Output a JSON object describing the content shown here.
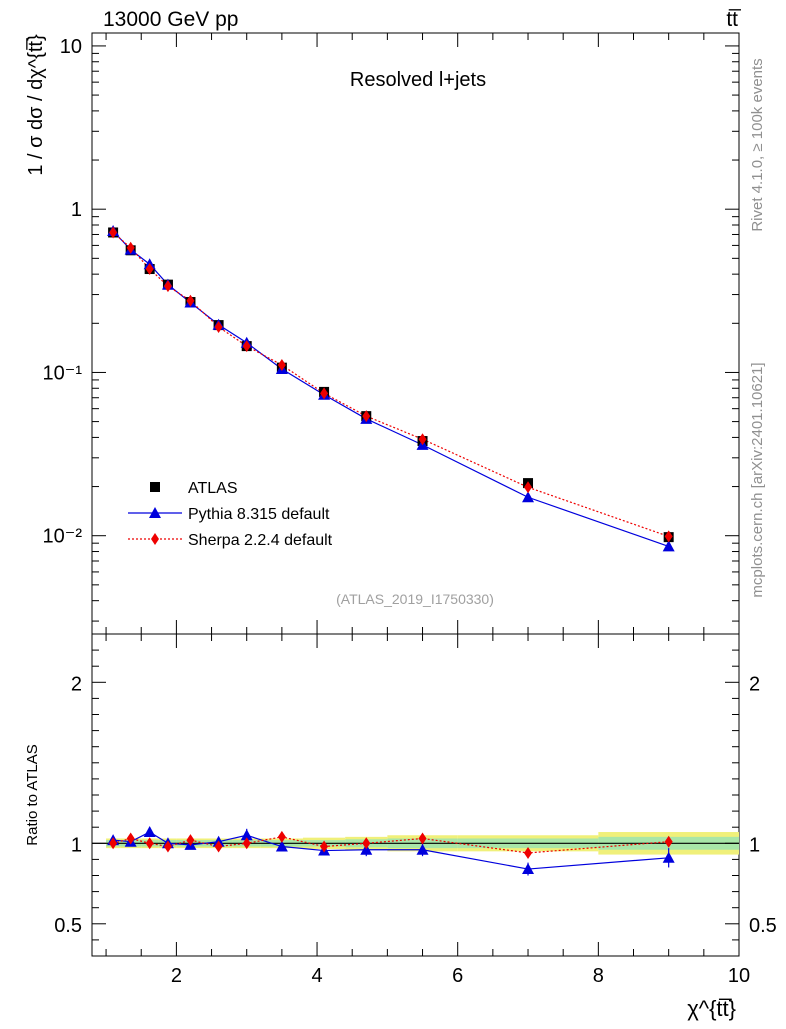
{
  "header": {
    "energy_label": "13000 GeV pp",
    "process_label": "tt̅"
  },
  "side_labels": {
    "rivet": "Rivet 4.1.0, ≥ 100k events",
    "source": "mcplots.cern.ch [arXiv:2401.10621]"
  },
  "chart_data": [
    {
      "type": "scatter",
      "panel": "main",
      "title": "Resolved l+jets",
      "watermark": "(ATLAS_2019_I1750330)",
      "ylabel": "1 / σ dσ / dχ^{tt̅}",
      "yscale": "log",
      "ylim": [
        0.0025,
        12
      ],
      "xlim": [
        0.8,
        10
      ],
      "ytick_labels": [
        "10",
        "1",
        "10⁻¹",
        "10⁻²"
      ],
      "ytick_values": [
        10,
        1,
        0.1,
        0.01
      ],
      "legend_position": "center-left",
      "x": [
        1.1,
        1.35,
        1.62,
        1.88,
        2.2,
        2.6,
        3.0,
        3.5,
        4.1,
        4.7,
        5.5,
        7.0,
        9.0
      ],
      "series": [
        {
          "name": "ATLAS",
          "style": "black squares",
          "color": "#000000",
          "values": [
            0.72,
            0.56,
            0.43,
            0.345,
            0.27,
            0.195,
            0.145,
            0.107,
            0.076,
            0.054,
            0.038,
            0.021,
            0.0098
          ]
        },
        {
          "name": "Pythia 8.315 default",
          "style": "blue triangles, solid line",
          "color": "#0000dd",
          "values": [
            0.735,
            0.565,
            0.46,
            0.345,
            0.268,
            0.196,
            0.152,
            0.105,
            0.073,
            0.052,
            0.036,
            0.0172,
            0.0086
          ]
        },
        {
          "name": "Sherpa 2.2.4 default",
          "style": "red diamonds, dotted line",
          "color": "#ee0000",
          "values": [
            0.72,
            0.58,
            0.43,
            0.338,
            0.275,
            0.19,
            0.145,
            0.111,
            0.0745,
            0.054,
            0.039,
            0.0198,
            0.0099
          ]
        }
      ]
    },
    {
      "type": "scatter",
      "panel": "ratio",
      "ylabel": "Ratio to ATLAS",
      "xlabel": "χ^{tt̅}",
      "ylim": [
        0.3,
        2.3
      ],
      "xlim": [
        0.8,
        10
      ],
      "ytick_values": [
        0.5,
        1,
        2
      ],
      "ytick_labels": [
        "0.5",
        "1",
        "2"
      ],
      "xtick_values": [
        2,
        4,
        6,
        8,
        10
      ],
      "xtick_labels": [
        "2",
        "4",
        "6",
        "8",
        "10"
      ],
      "x": [
        1.1,
        1.35,
        1.62,
        1.88,
        2.2,
        2.6,
        3.0,
        3.5,
        4.1,
        4.7,
        5.5,
        7.0,
        9.0
      ],
      "band_edges": [
        1.0,
        1.2,
        1.5,
        1.75,
        2.0,
        2.4,
        2.8,
        3.2,
        3.8,
        4.4,
        5.0,
        6.0,
        8.0,
        10.0
      ],
      "band": {
        "stat_halfwidth": [
          0.02,
          0.02,
          0.02,
          0.02,
          0.02,
          0.02,
          0.02,
          0.02,
          0.02,
          0.025,
          0.03,
          0.03,
          0.04
        ],
        "total_halfwidth": [
          0.03,
          0.03,
          0.03,
          0.03,
          0.03,
          0.03,
          0.03,
          0.03,
          0.035,
          0.04,
          0.05,
          0.05,
          0.07
        ],
        "stat_color": "#a8e6a8",
        "total_color": "#f0f07a"
      },
      "series": [
        {
          "name": "Pythia 8.315 default",
          "color": "#0000dd",
          "values": [
            1.02,
            1.01,
            1.07,
            1.0,
            0.99,
            1.01,
            1.05,
            0.98,
            0.955,
            0.96,
            0.96,
            0.84,
            0.91
          ],
          "errors": [
            0.02,
            0.02,
            0.03,
            0.03,
            0.02,
            0.03,
            0.04,
            0.03,
            0.03,
            0.04,
            0.04,
            0.04,
            0.06
          ]
        },
        {
          "name": "Sherpa 2.2.4 default",
          "color": "#ee0000",
          "values": [
            1.0,
            1.03,
            1.0,
            0.98,
            1.02,
            0.98,
            1.0,
            1.04,
            0.98,
            1.0,
            1.03,
            0.94,
            1.01
          ],
          "errors": [
            0.01,
            0.01,
            0.01,
            0.01,
            0.01,
            0.01,
            0.01,
            0.01,
            0.01,
            0.01,
            0.01,
            0.01,
            0.01
          ]
        }
      ]
    }
  ]
}
